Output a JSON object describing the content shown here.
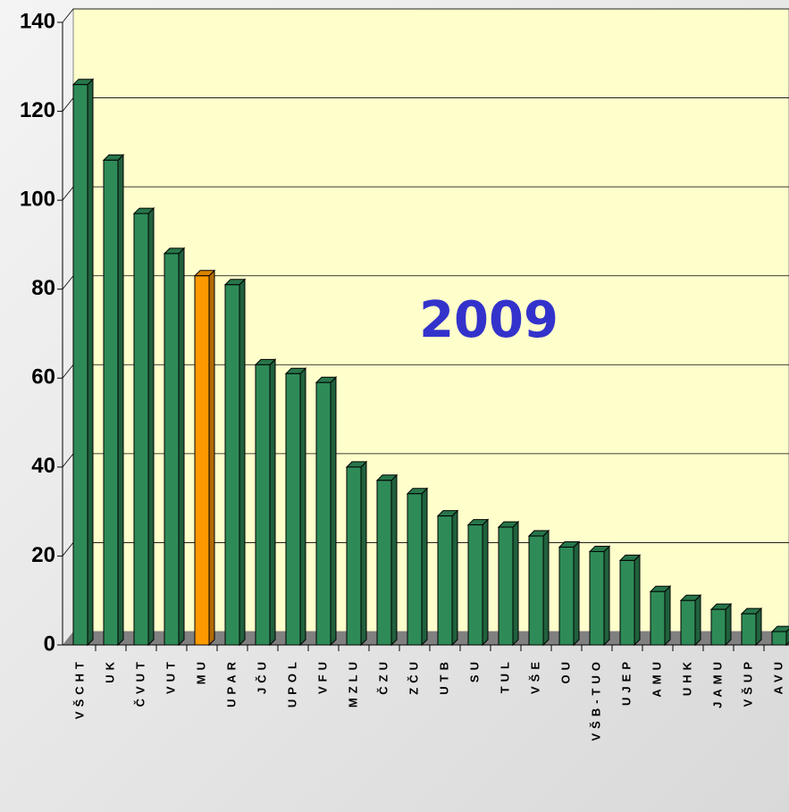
{
  "chart_data": {
    "type": "bar3d",
    "annotation": "2009",
    "categories": [
      "VŠCHT",
      "UK",
      "ČVUT",
      "VUT",
      "MU",
      "UPAR",
      "JČU",
      "UPOL",
      "VFU",
      "MZLU",
      "ČZU",
      "ZČU",
      "UTB",
      "SU",
      "TUL",
      "VŠE",
      "OU",
      "VŠB-TUO",
      "UJEP",
      "AMU",
      "UHK",
      "JAMU",
      "VŠUP",
      "AVU"
    ],
    "values": [
      126,
      109,
      97,
      88,
      83,
      81,
      63,
      61,
      59,
      40,
      37,
      34,
      29,
      27,
      26.5,
      24.5,
      22,
      21,
      19,
      12,
      10,
      8,
      7,
      3
    ],
    "colors": [
      "#2e8b57",
      "#2e8b57",
      "#2e8b57",
      "#2e8b57",
      "#ff9900",
      "#2e8b57",
      "#2e8b57",
      "#2e8b57",
      "#2e8b57",
      "#2e8b57",
      "#2e8b57",
      "#2e8b57",
      "#2e8b57",
      "#2e8b57",
      "#2e8b57",
      "#2e8b57",
      "#2e8b57",
      "#2e8b57",
      "#2e8b57",
      "#2e8b57",
      "#2e8b57",
      "#2e8b57",
      "#2e8b57",
      "#2e8b57"
    ],
    "ylim": [
      0,
      140
    ],
    "yticks": [
      0,
      20,
      40,
      60,
      80,
      100,
      120,
      140
    ],
    "grid": true
  }
}
